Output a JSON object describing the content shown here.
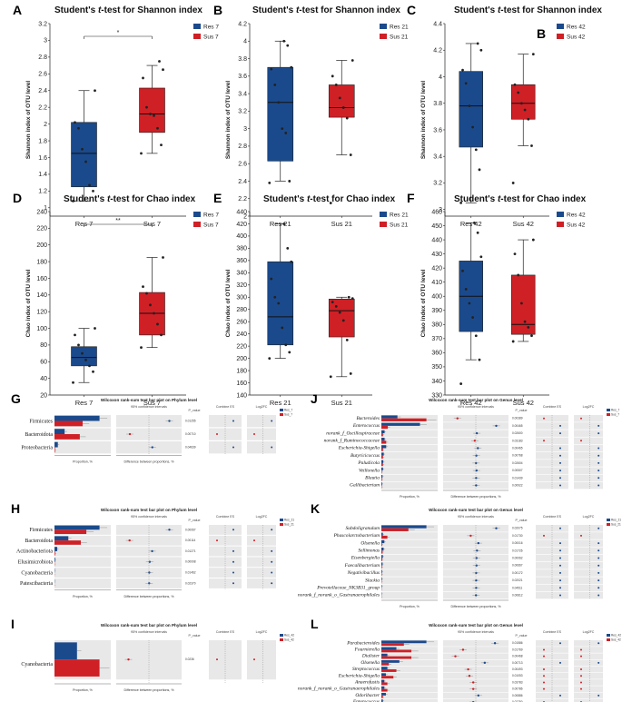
{
  "colors": {
    "blue": "#1b4a8c",
    "red": "#cf2026",
    "stripe": "#e8e8e8",
    "err": "#808080"
  },
  "chart_data": [
    {
      "id": "A",
      "type": "box",
      "letter": "A",
      "title": "Student's t-test for Shannon index",
      "title_italic": "t",
      "ylabel": "Shannon index of OTU level",
      "ylim": [
        0.9,
        3.2
      ],
      "ticks": [
        1,
        1.2,
        1.4,
        1.6,
        1.8,
        2,
        2.2,
        2.4,
        2.6,
        2.8,
        3,
        3.2
      ],
      "groups": [
        {
          "name": "Res 7",
          "q1": 1.25,
          "median": 1.65,
          "q3": 2.02,
          "min": 1.08,
          "max": 2.4,
          "points": [
            1.08,
            1.2,
            1.27,
            1.55,
            1.7,
            1.95,
            2.02,
            2.4
          ],
          "color": "blue"
        },
        {
          "name": "Sus 7",
          "q1": 1.9,
          "median": 2.12,
          "q3": 2.43,
          "min": 1.65,
          "max": 2.7,
          "points": [
            1.65,
            1.75,
            1.95,
            2.1,
            2.12,
            2.2,
            2.55,
            2.65,
            2.75
          ],
          "color": "red"
        }
      ],
      "sig": "*",
      "legend": [
        "Res 7",
        "Sus 7"
      ]
    },
    {
      "id": "B",
      "type": "box",
      "letter": "B",
      "title": "Student's t-test for Shannon index",
      "title_italic": "t",
      "ylabel": "Shannon index of OTU level",
      "ylim": [
        2,
        4.2
      ],
      "ticks": [
        2,
        2.2,
        2.4,
        2.6,
        2.8,
        3,
        3.2,
        3.4,
        3.6,
        3.8,
        4,
        4.2
      ],
      "groups": [
        {
          "name": "Res 21",
          "q1": 2.63,
          "median": 3.3,
          "q3": 3.7,
          "min": 2.4,
          "max": 4.0,
          "points": [
            2.38,
            2.4,
            2.95,
            3.0,
            3.3,
            3.5,
            3.68,
            3.7,
            3.95,
            4.0
          ],
          "color": "blue"
        },
        {
          "name": "Sus 21",
          "q1": 3.13,
          "median": 3.24,
          "q3": 3.5,
          "min": 2.7,
          "max": 3.78,
          "points": [
            2.15,
            2.7,
            3.12,
            3.24,
            3.35,
            3.5,
            3.6,
            3.78
          ],
          "color": "red"
        }
      ],
      "sig": "",
      "legend": [
        "Res 21",
        "Sus 21"
      ]
    },
    {
      "id": "C",
      "type": "box",
      "letter": "C",
      "title": "Student's t-test for Shannon index",
      "title_italic": "t",
      "ylabel": "Shannon index of OTU level",
      "ylim": [
        2.95,
        4.4
      ],
      "ticks": [
        3,
        3.2,
        3.4,
        3.6,
        3.8,
        4,
        4.2,
        4.4
      ],
      "groups": [
        {
          "name": "Res 42",
          "q1": 3.47,
          "median": 3.78,
          "q3": 4.04,
          "min": 3.05,
          "max": 4.25,
          "points": [
            3.05,
            3.3,
            3.45,
            3.62,
            3.78,
            3.95,
            4.05,
            4.2,
            4.25
          ],
          "color": "blue"
        },
        {
          "name": "Sus 42",
          "q1": 3.68,
          "median": 3.8,
          "q3": 3.94,
          "min": 3.48,
          "max": 4.17,
          "points": [
            3.2,
            3.48,
            3.68,
            3.75,
            3.8,
            3.88,
            3.94,
            4.17
          ],
          "color": "red"
        }
      ],
      "sig": "",
      "legend": [
        "Res 42",
        "Sus 42"
      ],
      "overlay_letter": "B"
    },
    {
      "id": "D",
      "type": "box",
      "letter": "D",
      "title": "Student's t-test for Chao index",
      "title_italic": "t",
      "ylabel": "Chao index of OTU level",
      "ylim": [
        20,
        240
      ],
      "ticks": [
        20,
        40,
        60,
        80,
        100,
        120,
        140,
        160,
        180,
        200,
        220,
        240
      ],
      "groups": [
        {
          "name": "Res 7",
          "q1": 55,
          "median": 65,
          "q3": 78,
          "min": 35,
          "max": 100,
          "points": [
            35,
            48,
            55,
            62,
            70,
            80,
            92,
            100
          ],
          "color": "blue"
        },
        {
          "name": "Sus 7",
          "q1": 92,
          "median": 118,
          "q3": 143,
          "min": 77,
          "max": 185,
          "points": [
            77,
            92,
            105,
            118,
            128,
            142,
            150,
            185
          ],
          "color": "red"
        }
      ],
      "sig": "**",
      "legend": [
        "Res 7",
        "Sus 7"
      ]
    },
    {
      "id": "E",
      "type": "box",
      "letter": "E",
      "title": "Student's t-test for Chao index",
      "title_italic": "t",
      "ylabel": "Chao index of OTU level",
      "ylim": [
        140,
        440
      ],
      "ticks": [
        140,
        160,
        180,
        200,
        220,
        240,
        260,
        280,
        300,
        320,
        340,
        360,
        380,
        400,
        420,
        440
      ],
      "groups": [
        {
          "name": "Res 21",
          "q1": 222,
          "median": 268,
          "q3": 358,
          "min": 200,
          "max": 420,
          "points": [
            200,
            210,
            222,
            250,
            290,
            300,
            330,
            358,
            380,
            420
          ],
          "color": "blue"
        },
        {
          "name": "Sus 21",
          "q1": 235,
          "median": 278,
          "q3": 297,
          "min": 170,
          "max": 300,
          "points": [
            170,
            175,
            230,
            262,
            275,
            285,
            292,
            298,
            300
          ],
          "color": "red"
        }
      ],
      "sig": "",
      "legend": [
        "Res 21",
        "Sus 21"
      ]
    },
    {
      "id": "F",
      "type": "box",
      "letter": "F",
      "title": "Student's t-test for Chao index",
      "title_italic": "t",
      "ylabel": "Chao index of OTU level",
      "ylim": [
        330,
        460
      ],
      "ticks": [
        330,
        340,
        350,
        360,
        370,
        380,
        390,
        400,
        410,
        420,
        430,
        440,
        450,
        460
      ],
      "groups": [
        {
          "name": "Res 42",
          "q1": 375,
          "median": 400,
          "q3": 425,
          "min": 355,
          "max": 452,
          "points": [
            338,
            355,
            372,
            385,
            395,
            405,
            418,
            428,
            445,
            452
          ],
          "color": "blue"
        },
        {
          "name": "Sus 42",
          "q1": 373,
          "median": 380,
          "q3": 415,
          "min": 368,
          "max": 440,
          "points": [
            368,
            372,
            378,
            382,
            395,
            415,
            430,
            440
          ],
          "color": "red"
        }
      ],
      "sig": "",
      "legend": [
        "Res 42",
        "Sus 42"
      ]
    },
    {
      "id": "G",
      "type": "wilcoxon",
      "letter": "G",
      "title": "Wilcoxon rank-sum test bar plot on Phylum level",
      "ci": "95% confidence intervals",
      "pcol": "P_value",
      "es": "Combine ES",
      "lfc": "Log2FC",
      "xlab1": "Proportion, %",
      "xlab2": "Difference between proportions, %",
      "legend": [
        "Res_7",
        "Sus_7"
      ],
      "italic": false,
      "cats": [
        {
          "name": "Firmicutes",
          "a": 80,
          "b": 50,
          "diff": 30,
          "p": "0.01255"
        },
        {
          "name": "Bacteroidota",
          "a": 18,
          "b": 45,
          "diff": -28,
          "p": "0.00710"
        },
        {
          "name": "Proteobacteria",
          "a": 6,
          "b": 1,
          "diff": 5,
          "p": "0.04639"
        }
      ]
    },
    {
      "id": "H",
      "type": "wilcoxon",
      "letter": "H",
      "title": "Wilcoxon rank-sum test bar plot on Phylum level",
      "ci": "95% confidence intervals",
      "pcol": "P_value",
      "es": "Combine ES",
      "lfc": "Log2FC",
      "xlab1": "Proportion, %",
      "xlab2": "Difference between proportions, %",
      "legend": [
        "Res_21",
        "Sus_21"
      ],
      "italic": false,
      "cats": [
        {
          "name": "Firmicutes",
          "a": 65,
          "b": 46,
          "diff": 19,
          "p": "0.00067"
        },
        {
          "name": "Bacteroidota",
          "a": 20,
          "b": 38,
          "diff": -18,
          "p": "0.00114"
        },
        {
          "name": "Actinobacteriota",
          "a": 4,
          "b": 1,
          "diff": 3,
          "p": "0.01271"
        },
        {
          "name": "Elusimicrobiota",
          "a": 1,
          "b": 0.3,
          "diff": 0.7,
          "p": "0.00008"
        },
        {
          "name": "Cyanobacteria",
          "a": 0.4,
          "b": 0.1,
          "diff": 0.3,
          "p": "0.01462"
        },
        {
          "name": "Patescibacteria",
          "a": 0.3,
          "b": 0.1,
          "diff": 0.2,
          "p": "0.02370"
        }
      ]
    },
    {
      "id": "I",
      "type": "wilcoxon",
      "letter": "I",
      "title": "Wilcoxon rank-sum test bar plot on Phylum level",
      "ci": "95% confidence intervals",
      "pcol": "P_value",
      "es": "Combine ES",
      "lfc": "Log2FC",
      "xlab1": "Proportion, %",
      "xlab2": "Difference between proportions, %",
      "legend": [
        "Res_42",
        "Sus_42"
      ],
      "italic": false,
      "cats": [
        {
          "name": "Cyanobacteria",
          "a": 0.05,
          "b": 0.1,
          "diff": -0.05,
          "p": "0.0236"
        }
      ]
    },
    {
      "id": "J",
      "type": "wilcoxon",
      "letter": "J",
      "title": "Wilcoxon rank-sum test bar plot on Genus level",
      "ci": "95% confidence intervals",
      "pcol": "P_value",
      "es": "Combine ES",
      "lfc": "Log2FC",
      "xlab1": "Proportion, %",
      "xlab2": "Difference between proportions, %",
      "legend": [
        "Res_7",
        "Sus_7"
      ],
      "italic": true,
      "cats": [
        {
          "name": "Bacteroides",
          "a": 10,
          "b": 28,
          "diff": -18,
          "p": "0.00389"
        },
        {
          "name": "Enterococcus",
          "a": 24,
          "b": 4,
          "diff": 20,
          "p": "0.00465"
        },
        {
          "name": "norank_f_Oscillospiraceae",
          "a": 2,
          "b": 1,
          "diff": 1,
          "p": "0.02600"
        },
        {
          "name": "norank_f_Ruminococcaceae",
          "a": 2,
          "b": 3,
          "diff": -1,
          "p": "0.03183"
        },
        {
          "name": "Escherichia-Shigella",
          "a": 3,
          "b": 1,
          "diff": 2,
          "p": "0.00465"
        },
        {
          "name": "Butyricicoccus",
          "a": 1.5,
          "b": 1,
          "diff": 0.5,
          "p": "0.00768"
        },
        {
          "name": "Paludicola",
          "a": 1.2,
          "b": 1,
          "diff": 0.2,
          "p": "0.02604"
        },
        {
          "name": "Veillonella",
          "a": 1,
          "b": 0.3,
          "diff": 0.7,
          "p": "0.00507"
        },
        {
          "name": "Blautia",
          "a": 0.7,
          "b": 0.4,
          "diff": 0.3,
          "p": "0.01439"
        },
        {
          "name": "Gallibacterium",
          "a": 0.5,
          "b": 0.2,
          "diff": 0.3,
          "p": "0.00922"
        }
      ]
    },
    {
      "id": "K",
      "type": "wilcoxon",
      "letter": "K",
      "title": "Wilcoxon rank-sum test bar plot on Genus level",
      "ci": "95% confidence intervals",
      "pcol": "P_value",
      "es": "Combine ES",
      "lfc": "Log2FC",
      "xlab1": "Proportion, %",
      "xlab2": "Difference between proportions, %",
      "legend": [
        "Res_21",
        "Sus_21"
      ],
      "italic": true,
      "cats": [
        {
          "name": "Subdoligranulum",
          "a": 30,
          "b": 18,
          "diff": 12,
          "p": "0.02075"
        },
        {
          "name": "Phascolarctobacterium",
          "a": 1,
          "b": 4,
          "diff": -3,
          "p": "0.01730"
        },
        {
          "name": "Olsenella",
          "a": 2,
          "b": 0.5,
          "diff": 1.5,
          "p": "0.00016"
        },
        {
          "name": "Sellimonas",
          "a": 1.5,
          "b": 0.8,
          "diff": 0.7,
          "p": "0.01726"
        },
        {
          "name": "Eisenbergiella",
          "a": 1,
          "b": 0.6,
          "diff": 0.4,
          "p": "0.00062"
        },
        {
          "name": "Faecalibacterium",
          "a": 0.8,
          "b": 0.4,
          "diff": 0.4,
          "p": "0.00667"
        },
        {
          "name": "Negativibacillus",
          "a": 0.5,
          "b": 0.3,
          "diff": 0.2,
          "p": "0.00172"
        },
        {
          "name": "Slackia",
          "a": 0.4,
          "b": 0.2,
          "diff": 0.2,
          "p": "0.02021"
        },
        {
          "name": "Prevotellaceae_NK3B31_group",
          "a": 0.3,
          "b": 0.1,
          "diff": 0.2,
          "p": "0.04511"
        },
        {
          "name": "norank_f_norank_o_Gastranaerophilales",
          "a": 0.2,
          "b": 0.1,
          "diff": 0.1,
          "p": "0.00812"
        }
      ]
    },
    {
      "id": "L",
      "type": "wilcoxon",
      "letter": "L",
      "title": "Wilcoxon rank-sum test bar plot on Genus level",
      "ci": "95% confidence intervals",
      "pcol": "P_value",
      "es": "Combine ES",
      "lfc": "Log2FC",
      "xlab1": "Proportion, %",
      "xlab2": "Difference between proportions, %",
      "legend": [
        "Res_42",
        "Sus_42"
      ],
      "italic": true,
      "cats": [
        {
          "name": "Parabacteroides",
          "a": 3,
          "b": 1.5,
          "diff": 1.5,
          "p": "0.01586"
        },
        {
          "name": "Fournierella",
          "a": 1,
          "b": 2,
          "diff": -1,
          "p": "0.01769"
        },
        {
          "name": "Dialister",
          "a": 0.4,
          "b": 2,
          "diff": -1.6,
          "p": "0.00468"
        },
        {
          "name": "Olsenella",
          "a": 1.2,
          "b": 0.5,
          "diff": 0.7,
          "p": "0.00713"
        },
        {
          "name": "Streptococcus",
          "a": 0.4,
          "b": 1,
          "diff": -0.6,
          "p": "0.00493"
        },
        {
          "name": "Escherichia-Shigella",
          "a": 0.3,
          "b": 0.8,
          "diff": -0.5,
          "p": "0.01053"
        },
        {
          "name": "Anaerofustis",
          "a": 0.2,
          "b": 0.4,
          "diff": -0.2,
          "p": "0.03783"
        },
        {
          "name": "norank_f_norank_o_Gastranaerophilales",
          "a": 0.2,
          "b": 0.4,
          "diff": -0.2,
          "p": "0.00786"
        },
        {
          "name": "Odoribacter",
          "a": 0.3,
          "b": 0.1,
          "diff": 0.2,
          "p": "0.00886"
        },
        {
          "name": "Enterococcus",
          "a": 0.1,
          "b": 0.3,
          "diff": -0.2,
          "p": "0.02750"
        }
      ]
    }
  ]
}
